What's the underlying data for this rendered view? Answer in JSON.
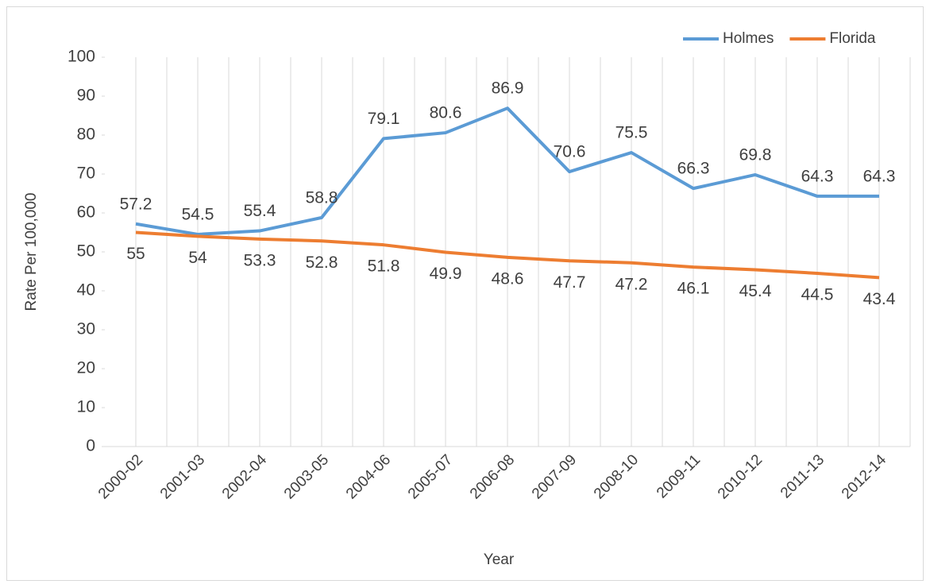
{
  "chart_data": {
    "type": "line",
    "x_label": "Year",
    "y_label": "Rate Per 100,000",
    "categories": [
      "2000-02",
      "2001-03",
      "2002-04",
      "2003-05",
      "2004-06",
      "2005-07",
      "2006-08",
      "2007-09",
      "2008-10",
      "2009-11",
      "2010-12",
      "2011-13",
      "2012-14"
    ],
    "series": [
      {
        "name": "Holmes",
        "color": "#5b9bd5",
        "values": [
          57.2,
          54.5,
          55.4,
          58.8,
          79.1,
          80.6,
          86.9,
          70.6,
          75.5,
          66.3,
          69.8,
          64.3,
          64.3
        ]
      },
      {
        "name": "Florida",
        "color": "#ed7d31",
        "values": [
          55,
          54,
          53.3,
          52.8,
          51.8,
          49.9,
          48.6,
          47.7,
          47.2,
          46.1,
          45.4,
          44.5,
          43.4
        ]
      }
    ],
    "ylim": [
      0,
      100
    ],
    "yticks": [
      0,
      10,
      20,
      30,
      40,
      50,
      60,
      70,
      80,
      90,
      100
    ],
    "grid": true,
    "legend": "top-right"
  }
}
